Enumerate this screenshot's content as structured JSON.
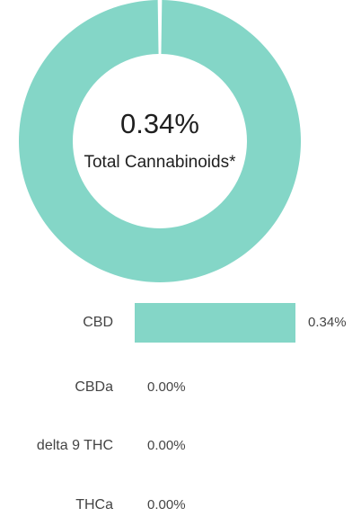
{
  "colors": {
    "accent": "#84D6C7",
    "background": "#FFFFFF",
    "text": "#333333"
  },
  "summary": {
    "total_value": "0.34%",
    "total_label": "Total Cannabinoids*"
  },
  "chart_data": [
    {
      "type": "pie",
      "categories": [
        "CBD",
        "CBDa",
        "delta 9 THC",
        "THCa"
      ],
      "values": [
        0.34,
        0.0,
        0.0,
        0.0
      ],
      "unit": "%"
    },
    {
      "type": "bar",
      "orientation": "horizontal",
      "categories": [
        "CBD",
        "CBDa",
        "delta 9 THC",
        "THCa"
      ],
      "values": [
        0.34,
        0.0,
        0.0,
        0.0
      ],
      "value_labels": [
        "0.34%",
        "0.00%",
        "0.00%",
        "0.00%"
      ],
      "unit": "%",
      "xlim": [
        0,
        0.34
      ]
    }
  ]
}
